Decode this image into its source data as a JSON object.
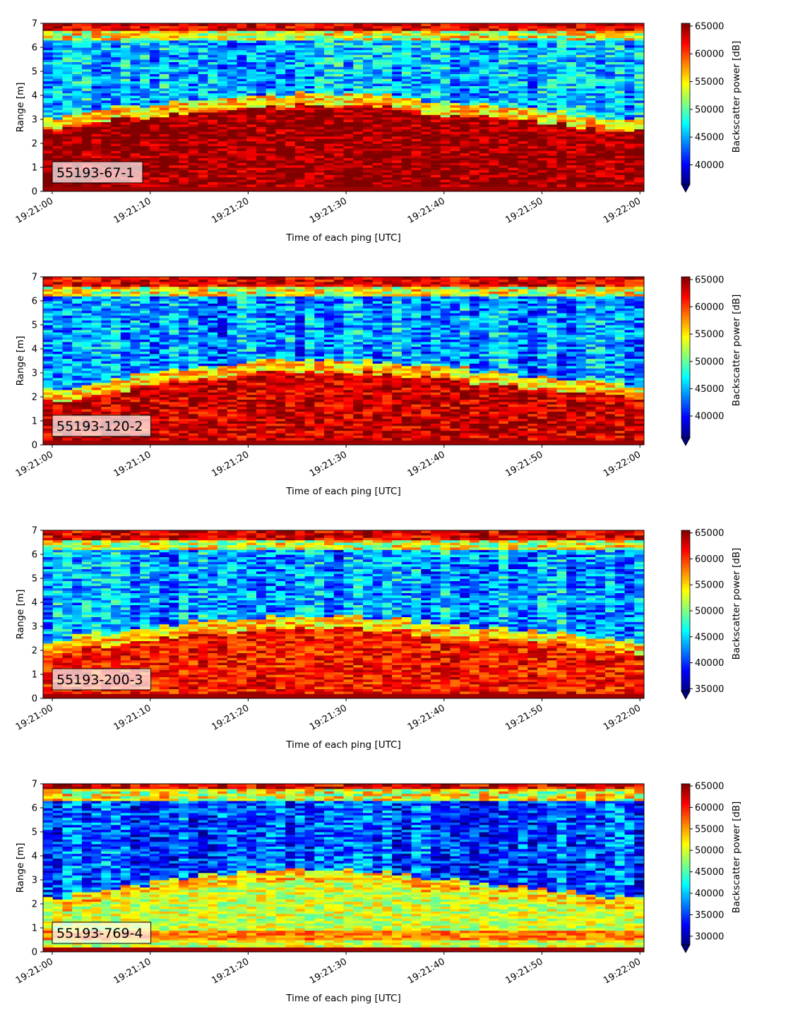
{
  "chart_data": [
    {
      "type": "heatmap",
      "annotation": "55193-67-1",
      "xlabel": "Time of each ping [UTC]",
      "ylabel": "Range [m]",
      "x_start": "19:21:00",
      "x_end": "19:22:00",
      "xlim": [
        "18:20:59",
        "19:22:00.5"
      ],
      "ylim": [
        0,
        7
      ],
      "x_ticks": [
        "19:21:00",
        "19:21:10",
        "19:21:20",
        "19:21:30",
        "19:21:40",
        "19:21:50",
        "19:22:00"
      ],
      "y_ticks": [
        "0",
        "1",
        "2",
        "3",
        "4",
        "5",
        "6",
        "7"
      ],
      "colorbar_label": "Backscatter power [dB]",
      "color_range": [
        36500,
        65500
      ],
      "colorbar_ticks": [
        "40000",
        "45000",
        "50000",
        "55000",
        "60000",
        "65000"
      ],
      "colorbar_tick_values": [
        40000,
        45000,
        50000,
        55000,
        60000,
        65000
      ],
      "colorbar_extend": "min",
      "colormap": "jet",
      "profile": {
        "bottom_band": 0.25,
        "strong_layer_top_start": 2.9,
        "strong_layer_top_peak": 3.9,
        "strong_layer_top_end": 2.8,
        "surface_layer": 6.5,
        "background_level": 0.3,
        "strong_level": 0.98
      }
    },
    {
      "type": "heatmap",
      "annotation": "55193-120-2",
      "xlabel": "Time of each ping [UTC]",
      "ylabel": "Range [m]",
      "x_start": "19:21:00",
      "x_end": "19:22:00",
      "ylim": [
        0,
        7
      ],
      "x_ticks": [
        "19:21:00",
        "19:21:10",
        "19:21:20",
        "19:21:30",
        "19:21:40",
        "19:21:50",
        "19:22:00"
      ],
      "y_ticks": [
        "0",
        "1",
        "2",
        "3",
        "4",
        "5",
        "6",
        "7"
      ],
      "colorbar_label": "Backscatter power [dB]",
      "color_range": [
        36000,
        65500
      ],
      "colorbar_ticks": [
        "40000",
        "45000",
        "50000",
        "55000",
        "60000",
        "65000"
      ],
      "colorbar_tick_values": [
        40000,
        45000,
        50000,
        55000,
        60000,
        65000
      ],
      "colorbar_extend": "min",
      "colormap": "jet",
      "profile": {
        "bottom_band": 0.25,
        "strong_layer_top_start": 2.1,
        "strong_layer_top_peak": 3.4,
        "strong_layer_top_end": 2.3,
        "surface_layer": 6.4,
        "background_level": 0.28,
        "strong_level": 0.92
      }
    },
    {
      "type": "heatmap",
      "annotation": "55193-200-3",
      "xlabel": "Time of each ping [UTC]",
      "ylabel": "Range [m]",
      "x_start": "19:21:00",
      "x_end": "19:22:00",
      "ylim": [
        0,
        7
      ],
      "x_ticks": [
        "19:21:00",
        "19:21:10",
        "19:21:20",
        "19:21:30",
        "19:21:40",
        "19:21:50",
        "19:22:00"
      ],
      "y_ticks": [
        "0",
        "1",
        "2",
        "3",
        "4",
        "5",
        "6",
        "7"
      ],
      "colorbar_label": "Backscatter power [dB]",
      "color_range": [
        34500,
        65500
      ],
      "colorbar_ticks": [
        "35000",
        "40000",
        "45000",
        "50000",
        "55000",
        "60000",
        "65000"
      ],
      "colorbar_tick_values": [
        35000,
        40000,
        45000,
        50000,
        55000,
        60000,
        65000
      ],
      "colorbar_extend": "min",
      "colormap": "jet",
      "profile": {
        "bottom_band": 0.25,
        "strong_layer_top_start": 2.2,
        "strong_layer_top_peak": 3.3,
        "strong_layer_top_end": 2.2,
        "surface_layer": 6.4,
        "background_level": 0.28,
        "strong_level": 0.86
      }
    },
    {
      "type": "heatmap",
      "annotation": "55193-769-4",
      "xlabel": "Time of each ping [UTC]",
      "ylabel": "Range [m]",
      "x_start": "19:21:00",
      "x_end": "19:22:00",
      "ylim": [
        0,
        7
      ],
      "x_ticks": [
        "19:21:00",
        "19:21:10",
        "19:21:20",
        "19:21:30",
        "19:21:40",
        "19:21:50",
        "19:22:00"
      ],
      "y_ticks": [
        "0",
        "1",
        "2",
        "3",
        "4",
        "5",
        "6",
        "7"
      ],
      "colorbar_label": "Backscatter power [dB]",
      "color_range": [
        28000,
        65500
      ],
      "colorbar_ticks": [
        "30000",
        "35000",
        "40000",
        "45000",
        "50000",
        "55000",
        "60000",
        "65000"
      ],
      "colorbar_tick_values": [
        30000,
        35000,
        40000,
        45000,
        50000,
        55000,
        60000,
        65000
      ],
      "colorbar_extend": "min",
      "colormap": "jet",
      "profile": {
        "bottom_band": 0.25,
        "strong_layer_top_start": 2.0,
        "strong_layer_top_peak": 3.3,
        "strong_layer_top_end": 2.0,
        "surface_layer": 6.6,
        "background_level": 0.2,
        "strong_level": 0.58
      }
    }
  ]
}
